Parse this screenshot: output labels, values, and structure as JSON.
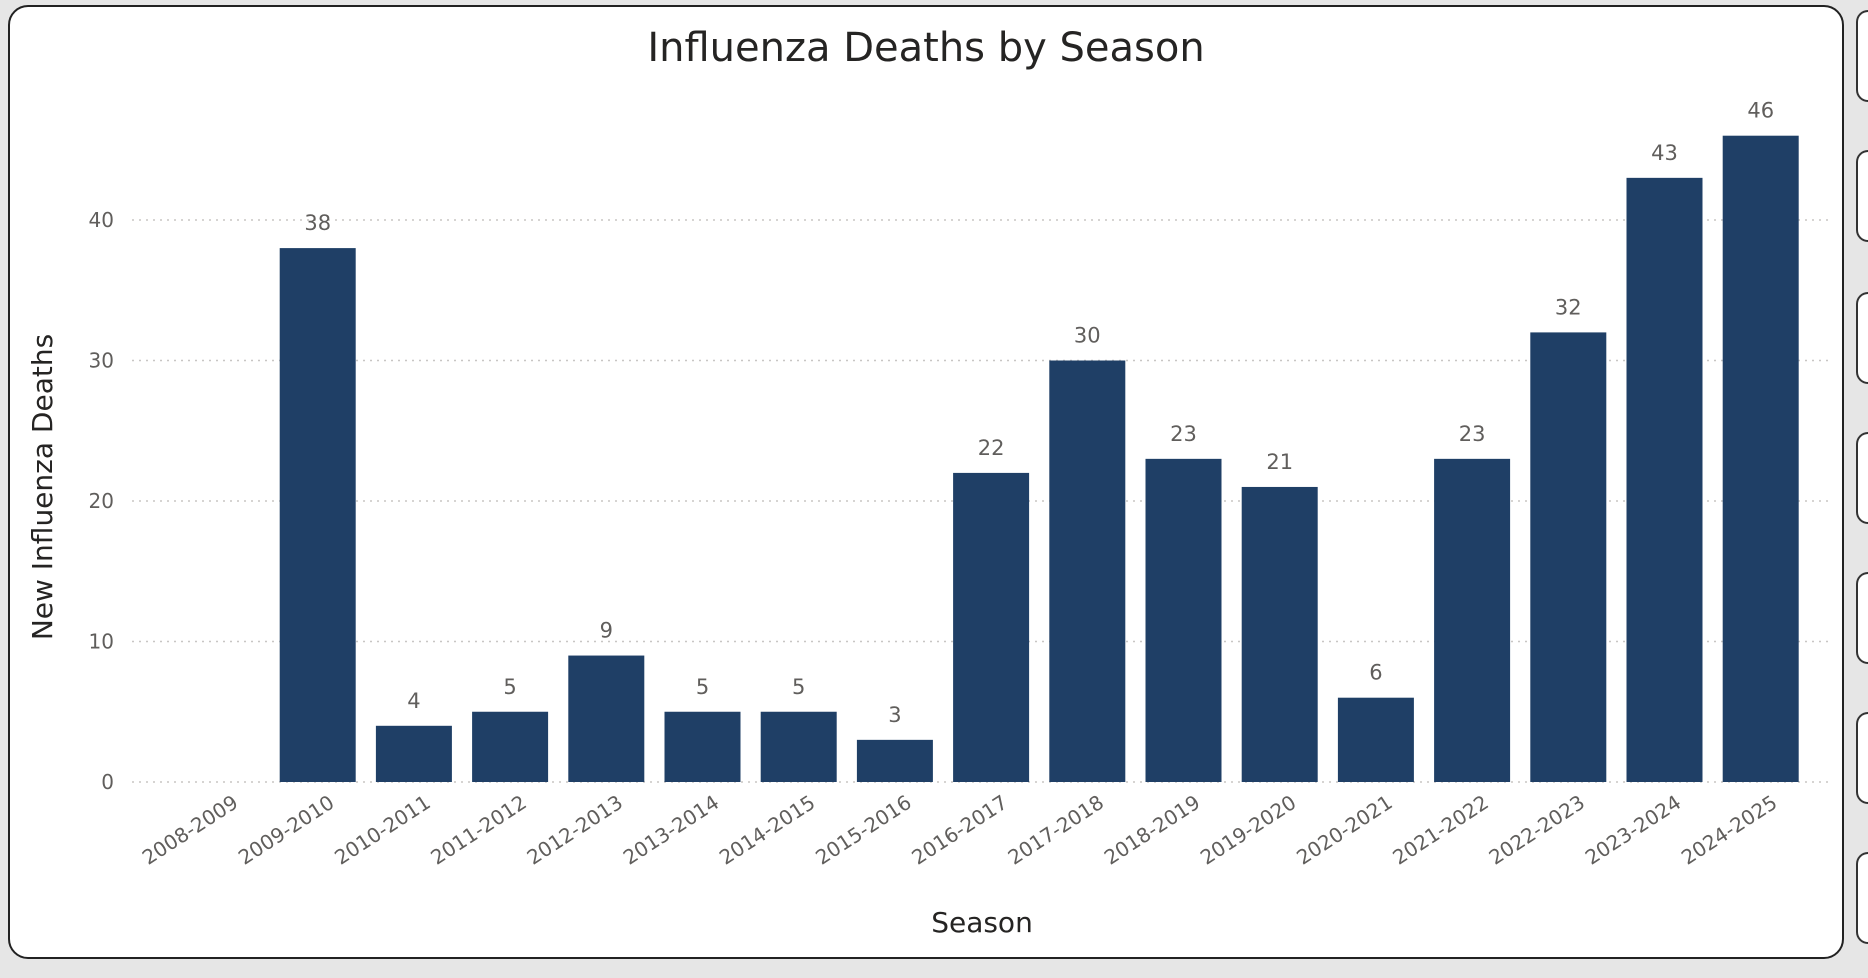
{
  "chart_data": {
    "type": "bar",
    "title": "Influenza Deaths by Season",
    "xlabel": "Season",
    "ylabel": "New Influenza Deaths",
    "categories": [
      "2008-2009",
      "2009-2010",
      "2010-2011",
      "2011-2012",
      "2012-2013",
      "2013-2014",
      "2014-2015",
      "2015-2016",
      "2016-2017",
      "2017-2018",
      "2018-2019",
      "2019-2020",
      "2020-2021",
      "2021-2022",
      "2022-2023",
      "2023-2024",
      "2024-2025"
    ],
    "values": [
      null,
      38,
      4,
      5,
      9,
      5,
      5,
      3,
      22,
      30,
      23,
      21,
      6,
      23,
      32,
      43,
      46
    ],
    "yticks": [
      0,
      10,
      20,
      30,
      40
    ],
    "ylim": [
      0,
      50
    ],
    "grid": true,
    "bar_color": "#1f3f66"
  }
}
